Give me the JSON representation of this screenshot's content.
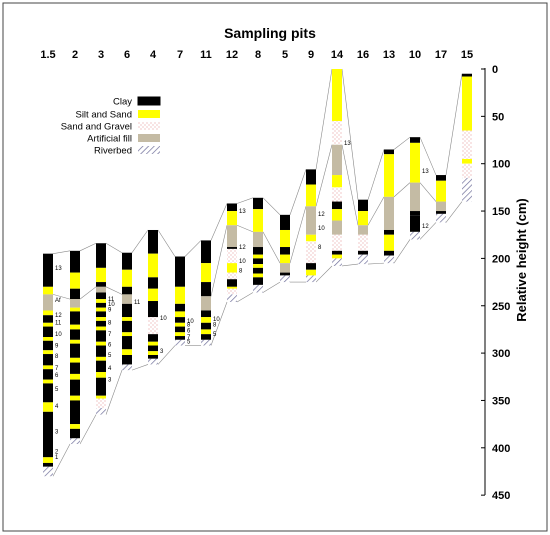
{
  "title": "Sampling pits",
  "y_axis": {
    "label": "Relative height (cm)",
    "ticks": [
      0,
      50,
      100,
      150,
      200,
      250,
      300,
      350,
      400,
      450
    ]
  },
  "legend": [
    {
      "key": "clay",
      "label": "Clay"
    },
    {
      "key": "silt",
      "label": "Silt and Sand"
    },
    {
      "key": "sand",
      "label": "Sand and Gravel"
    },
    {
      "key": "fill",
      "label": "Artificial fill"
    },
    {
      "key": "river",
      "label": "Riverbed"
    }
  ],
  "colors": {
    "clay": "#000000",
    "silt": "#ffff00",
    "sand_dot": "#e8a0a0",
    "fill": "#c4bba4",
    "river": "#6e6e9a"
  },
  "pits": [
    {
      "name": "1.5",
      "layers": [
        [
          "clay",
          195,
          230
        ],
        [
          "silt",
          230,
          238
        ],
        [
          "fill",
          238,
          255
        ],
        [
          "silt",
          255,
          260
        ],
        [
          "clay",
          260,
          268
        ],
        [
          "silt",
          268,
          272
        ],
        [
          "clay",
          272,
          283
        ],
        [
          "silt",
          283,
          287
        ],
        [
          "clay",
          287,
          297
        ],
        [
          "silt",
          297,
          301
        ],
        [
          "clay",
          301,
          313
        ],
        [
          "silt",
          313,
          317
        ],
        [
          "clay",
          317,
          328
        ],
        [
          "silt",
          328,
          332
        ],
        [
          "clay",
          332,
          352
        ],
        [
          "silt",
          352,
          362
        ],
        [
          "clay",
          362,
          410
        ],
        [
          "silt",
          410,
          416
        ],
        [
          "clay",
          416,
          420
        ],
        [
          "river",
          420,
          430
        ]
      ],
      "labels": [
        [
          "13",
          212
        ],
        [
          "Af",
          246
        ],
        [
          "12",
          262
        ],
        [
          "11",
          270
        ],
        [
          "10",
          282
        ],
        [
          "9",
          294
        ],
        [
          "8",
          305
        ],
        [
          "7",
          318
        ],
        [
          "6",
          325
        ],
        [
          "5",
          340
        ],
        [
          "4",
          358
        ],
        [
          "3",
          385
        ],
        [
          "2",
          406
        ],
        [
          "1",
          412
        ]
      ]
    },
    {
      "name": "2",
      "layers": [
        [
          "clay",
          192,
          215
        ],
        [
          "silt",
          215,
          232
        ],
        [
          "clay",
          232,
          243
        ],
        [
          "fill",
          243,
          252
        ],
        [
          "silt",
          252,
          256
        ],
        [
          "clay",
          256,
          270
        ],
        [
          "silt",
          270,
          275
        ],
        [
          "clay",
          275,
          286
        ],
        [
          "silt",
          286,
          290
        ],
        [
          "clay",
          290,
          305
        ],
        [
          "silt",
          305,
          310
        ],
        [
          "clay",
          310,
          322
        ],
        [
          "silt",
          322,
          328
        ],
        [
          "clay",
          328,
          345
        ],
        [
          "silt",
          345,
          350
        ],
        [
          "clay",
          350,
          375
        ],
        [
          "silt",
          375,
          380
        ],
        [
          "clay",
          380,
          390
        ],
        [
          "river",
          390,
          396
        ]
      ],
      "labels": []
    },
    {
      "name": "3",
      "layers": [
        [
          "clay",
          184,
          210
        ],
        [
          "silt",
          210,
          225
        ],
        [
          "clay",
          225,
          230
        ],
        [
          "fill",
          230,
          236
        ],
        [
          "clay",
          236,
          243
        ],
        [
          "silt",
          243,
          247
        ],
        [
          "clay",
          247,
          252
        ],
        [
          "silt",
          252,
          256
        ],
        [
          "clay",
          256,
          262
        ],
        [
          "silt",
          262,
          266
        ],
        [
          "clay",
          266,
          272
        ],
        [
          "silt",
          272,
          276
        ],
        [
          "clay",
          276,
          288
        ],
        [
          "silt",
          288,
          292
        ],
        [
          "clay",
          292,
          304
        ],
        [
          "silt",
          304,
          308
        ],
        [
          "clay",
          308,
          320
        ],
        [
          "silt",
          320,
          326
        ],
        [
          "clay",
          326,
          345
        ],
        [
          "silt",
          345,
          348
        ],
        [
          "sand",
          348,
          358
        ],
        [
          "river",
          358,
          365
        ]
      ],
      "labels": [
        [
          "11",
          245
        ],
        [
          "10",
          250
        ],
        [
          "9",
          256
        ],
        [
          "8",
          270
        ],
        [
          "7",
          282
        ],
        [
          "6",
          293
        ],
        [
          "5",
          304
        ],
        [
          "4",
          318
        ],
        [
          "3",
          330
        ]
      ]
    },
    {
      "name": "6",
      "layers": [
        [
          "clay",
          194,
          212
        ],
        [
          "silt",
          212,
          230
        ],
        [
          "clay",
          230,
          238
        ],
        [
          "fill",
          238,
          248
        ],
        [
          "clay",
          248,
          262
        ],
        [
          "silt",
          262,
          266
        ],
        [
          "clay",
          266,
          278
        ],
        [
          "silt",
          278,
          282
        ],
        [
          "clay",
          282,
          296
        ],
        [
          "silt",
          296,
          302
        ],
        [
          "clay",
          302,
          312
        ],
        [
          "river",
          312,
          318
        ]
      ],
      "labels": [
        [
          "11",
          248
        ]
      ]
    },
    {
      "name": "4",
      "layers": [
        [
          "clay",
          170,
          195
        ],
        [
          "silt",
          195,
          220
        ],
        [
          "clay",
          220,
          232
        ],
        [
          "silt",
          232,
          245
        ],
        [
          "clay",
          245,
          262
        ],
        [
          "sand",
          262,
          280
        ],
        [
          "clay",
          280,
          288
        ],
        [
          "silt",
          288,
          292
        ],
        [
          "clay",
          292,
          298
        ],
        [
          "silt",
          298,
          302
        ],
        [
          "clay",
          302,
          306
        ],
        [
          "river",
          306,
          312
        ]
      ],
      "labels": [
        [
          "10",
          265
        ],
        [
          "3",
          300
        ]
      ]
    },
    {
      "name": "7",
      "layers": [
        [
          "clay",
          198,
          230
        ],
        [
          "silt",
          230,
          248
        ],
        [
          "clay",
          248,
          256
        ],
        [
          "silt",
          256,
          262
        ],
        [
          "clay",
          262,
          268
        ],
        [
          "silt",
          268,
          272
        ],
        [
          "clay",
          272,
          278
        ],
        [
          "silt",
          278,
          282
        ],
        [
          "clay",
          282,
          286
        ],
        [
          "river",
          286,
          292
        ]
      ],
      "labels": [
        [
          "10",
          268
        ],
        [
          "8",
          272
        ],
        [
          "6",
          278
        ],
        [
          "7",
          285
        ],
        [
          "5",
          290
        ]
      ]
    },
    {
      "name": "11",
      "layers": [
        [
          "clay",
          181,
          205
        ],
        [
          "silt",
          205,
          225
        ],
        [
          "clay",
          225,
          240
        ],
        [
          "fill",
          240,
          255
        ],
        [
          "clay",
          255,
          262
        ],
        [
          "silt",
          262,
          268
        ],
        [
          "clay",
          268,
          275
        ],
        [
          "silt",
          275,
          280
        ],
        [
          "clay",
          280,
          286
        ],
        [
          "river",
          286,
          292
        ]
      ],
      "labels": [
        [
          "10",
          266
        ],
        [
          "8",
          272
        ],
        [
          "5",
          282
        ]
      ]
    },
    {
      "name": "12",
      "layers": [
        [
          "clay",
          142,
          150
        ],
        [
          "silt",
          150,
          165
        ],
        [
          "fill",
          165,
          188
        ],
        [
          "clay",
          188,
          190
        ],
        [
          "sand",
          190,
          205
        ],
        [
          "silt",
          205,
          215
        ],
        [
          "sand",
          215,
          222
        ],
        [
          "clay",
          222,
          230
        ],
        [
          "silt",
          230,
          232
        ],
        [
          "sand",
          232,
          238
        ],
        [
          "river",
          238,
          246
        ]
      ],
      "labels": [
        [
          "13",
          152
        ],
        [
          "12",
          190
        ],
        [
          "10",
          205
        ],
        [
          "8",
          215
        ]
      ]
    },
    {
      "name": "8",
      "layers": [
        [
          "clay",
          136,
          148
        ],
        [
          "silt",
          148,
          172
        ],
        [
          "fill",
          172,
          188
        ],
        [
          "clay",
          188,
          196
        ],
        [
          "silt",
          196,
          200
        ],
        [
          "clay",
          200,
          206
        ],
        [
          "silt",
          206,
          210
        ],
        [
          "clay",
          210,
          216
        ],
        [
          "silt",
          216,
          220
        ],
        [
          "clay",
          220,
          228
        ],
        [
          "river",
          228,
          236
        ]
      ],
      "labels": []
    },
    {
      "name": "5",
      "layers": [
        [
          "clay",
          154,
          170
        ],
        [
          "silt",
          170,
          188
        ],
        [
          "clay",
          188,
          196
        ],
        [
          "silt",
          196,
          205
        ],
        [
          "fill",
          205,
          215
        ],
        [
          "clay",
          215,
          218
        ],
        [
          "river",
          218,
          225
        ]
      ],
      "labels": []
    },
    {
      "name": "9",
      "layers": [
        [
          "clay",
          106,
          122
        ],
        [
          "silt",
          122,
          145
        ],
        [
          "fill",
          145,
          175
        ],
        [
          "silt",
          175,
          182
        ],
        [
          "sand",
          182,
          205
        ],
        [
          "clay",
          205,
          212
        ],
        [
          "silt",
          212,
          218
        ],
        [
          "river",
          218,
          225
        ]
      ],
      "labels": [
        [
          "12",
          155
        ],
        [
          "10",
          170
        ],
        [
          "8",
          190
        ]
      ]
    },
    {
      "name": "14",
      "layers": [
        [
          "silt",
          0,
          55
        ],
        [
          "sand",
          55,
          80
        ],
        [
          "fill",
          80,
          112
        ],
        [
          "silt",
          112,
          125
        ],
        [
          "sand",
          125,
          140
        ],
        [
          "clay",
          140,
          148
        ],
        [
          "silt",
          148,
          160
        ],
        [
          "fill",
          160,
          175
        ],
        [
          "sand",
          175,
          192
        ],
        [
          "clay",
          192,
          196
        ],
        [
          "silt",
          196,
          200
        ],
        [
          "river",
          200,
          208
        ]
      ],
      "labels": [
        [
          "13",
          80
        ]
      ]
    },
    {
      "name": "16",
      "layers": [
        [
          "clay",
          138,
          150
        ],
        [
          "silt",
          150,
          165
        ],
        [
          "fill",
          165,
          175
        ],
        [
          "sand",
          175,
          192
        ],
        [
          "clay",
          192,
          196
        ],
        [
          "river",
          196,
          206
        ]
      ],
      "labels": []
    },
    {
      "name": "13",
      "layers": [
        [
          "clay",
          85,
          90
        ],
        [
          "silt",
          90,
          135
        ],
        [
          "fill",
          135,
          170
        ],
        [
          "clay",
          170,
          175
        ],
        [
          "silt",
          175,
          192
        ],
        [
          "clay",
          192,
          197
        ],
        [
          "river",
          197,
          205
        ]
      ],
      "labels": []
    },
    {
      "name": "10",
      "layers": [
        [
          "clay",
          72,
          78
        ],
        [
          "silt",
          78,
          120
        ],
        [
          "fill",
          120,
          150
        ],
        [
          "clay",
          150,
          155
        ],
        [
          "clay",
          155,
          172
        ],
        [
          "river",
          172,
          180
        ]
      ],
      "labels": [
        [
          "13",
          110
        ],
        [
          "12",
          168
        ]
      ]
    },
    {
      "name": "17",
      "layers": [
        [
          "clay",
          112,
          118
        ],
        [
          "silt",
          118,
          140
        ],
        [
          "fill",
          140,
          150
        ],
        [
          "clay",
          150,
          153
        ],
        [
          "river",
          153,
          162
        ]
      ],
      "labels": []
    },
    {
      "name": "15",
      "layers": [
        [
          "clay",
          5,
          8
        ],
        [
          "silt",
          8,
          65
        ],
        [
          "sand",
          65,
          95
        ],
        [
          "silt",
          95,
          100
        ],
        [
          "sand",
          100,
          115
        ],
        [
          "river",
          115,
          140
        ]
      ],
      "labels": []
    }
  ]
}
